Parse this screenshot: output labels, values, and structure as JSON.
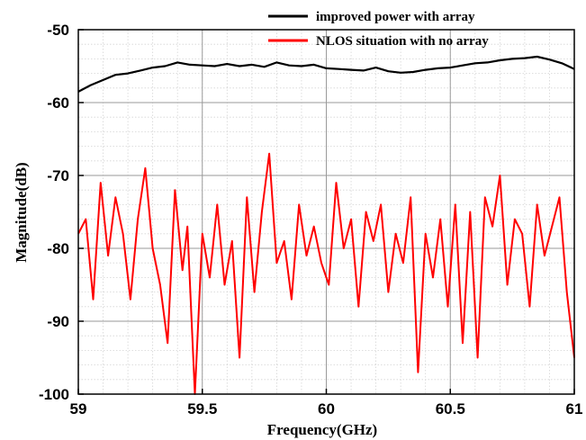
{
  "chart_data": {
    "type": "line",
    "title": "",
    "xlabel": "Frequency(GHz)",
    "ylabel": "Magnitude(dB)",
    "xlim": [
      59,
      61
    ],
    "ylim": [
      -100,
      -50
    ],
    "x_ticks": [
      59,
      59.5,
      60,
      60.5,
      61
    ],
    "x_tick_labels": [
      "59",
      "59.5",
      "60",
      "60.5",
      "61"
    ],
    "y_ticks": [
      -100,
      -90,
      -80,
      -70,
      -60,
      -50
    ],
    "y_tick_labels": [
      "-100",
      "-90",
      "-80",
      "-70",
      "-60",
      "-50"
    ],
    "grid": true,
    "legend_position": "top-right",
    "series": [
      {
        "name": "improved power with array",
        "color": "#000000",
        "x": [
          59.0,
          59.05,
          59.1,
          59.15,
          59.2,
          59.25,
          59.3,
          59.35,
          59.4,
          59.45,
          59.5,
          59.55,
          59.6,
          59.65,
          59.7,
          59.75,
          59.8,
          59.85,
          59.9,
          59.95,
          60.0,
          60.05,
          60.1,
          60.15,
          60.2,
          60.25,
          60.3,
          60.35,
          60.4,
          60.45,
          60.5,
          60.55,
          60.6,
          60.65,
          60.7,
          60.75,
          60.8,
          60.85,
          60.9,
          60.95,
          61.0
        ],
        "values": [
          -58.5,
          -57.6,
          -56.9,
          -56.2,
          -56.0,
          -55.6,
          -55.2,
          -55.0,
          -54.5,
          -54.8,
          -54.9,
          -55.0,
          -54.7,
          -55.0,
          -54.8,
          -55.1,
          -54.5,
          -54.9,
          -55.0,
          -54.8,
          -55.3,
          -55.4,
          -55.5,
          -55.6,
          -55.2,
          -55.7,
          -55.9,
          -55.8,
          -55.5,
          -55.3,
          -55.2,
          -54.9,
          -54.6,
          -54.5,
          -54.2,
          -54.0,
          -53.9,
          -53.7,
          -54.1,
          -54.6,
          -55.4
        ]
      },
      {
        "name": "NLOS situation with no array",
        "color": "#ff0000",
        "x": [
          59.0,
          59.03,
          59.06,
          59.09,
          59.12,
          59.15,
          59.18,
          59.21,
          59.24,
          59.27,
          59.3,
          59.33,
          59.36,
          59.39,
          59.42,
          59.44,
          59.47,
          59.5,
          59.53,
          59.56,
          59.59,
          59.62,
          59.65,
          59.68,
          59.71,
          59.74,
          59.77,
          59.8,
          59.83,
          59.86,
          59.89,
          59.92,
          59.95,
          59.98,
          60.01,
          60.04,
          60.07,
          60.1,
          60.13,
          60.16,
          60.19,
          60.22,
          60.25,
          60.28,
          60.31,
          60.34,
          60.37,
          60.4,
          60.43,
          60.46,
          60.49,
          60.52,
          60.55,
          60.58,
          60.61,
          60.64,
          60.67,
          60.7,
          60.73,
          60.76,
          60.79,
          60.82,
          60.85,
          60.88,
          60.91,
          60.94,
          60.97,
          61.0
        ],
        "values": [
          -78,
          -76,
          -87,
          -71,
          -81,
          -73,
          -78,
          -87,
          -76,
          -69,
          -80,
          -85,
          -93,
          -72,
          -83,
          -77,
          -100,
          -78,
          -84,
          -74,
          -85,
          -79,
          -95,
          -73,
          -86,
          -75,
          -67,
          -82,
          -79,
          -87,
          -74,
          -81,
          -77,
          -82,
          -85,
          -71,
          -80,
          -76,
          -88,
          -75,
          -79,
          -74,
          -86,
          -78,
          -82,
          -73,
          -97,
          -78,
          -84,
          -76,
          -88,
          -74,
          -93,
          -75,
          -95,
          -73,
          -77,
          -70,
          -85,
          -76,
          -78,
          -88,
          -74,
          -81,
          -77,
          -73,
          -86,
          -95
        ]
      }
    ]
  }
}
